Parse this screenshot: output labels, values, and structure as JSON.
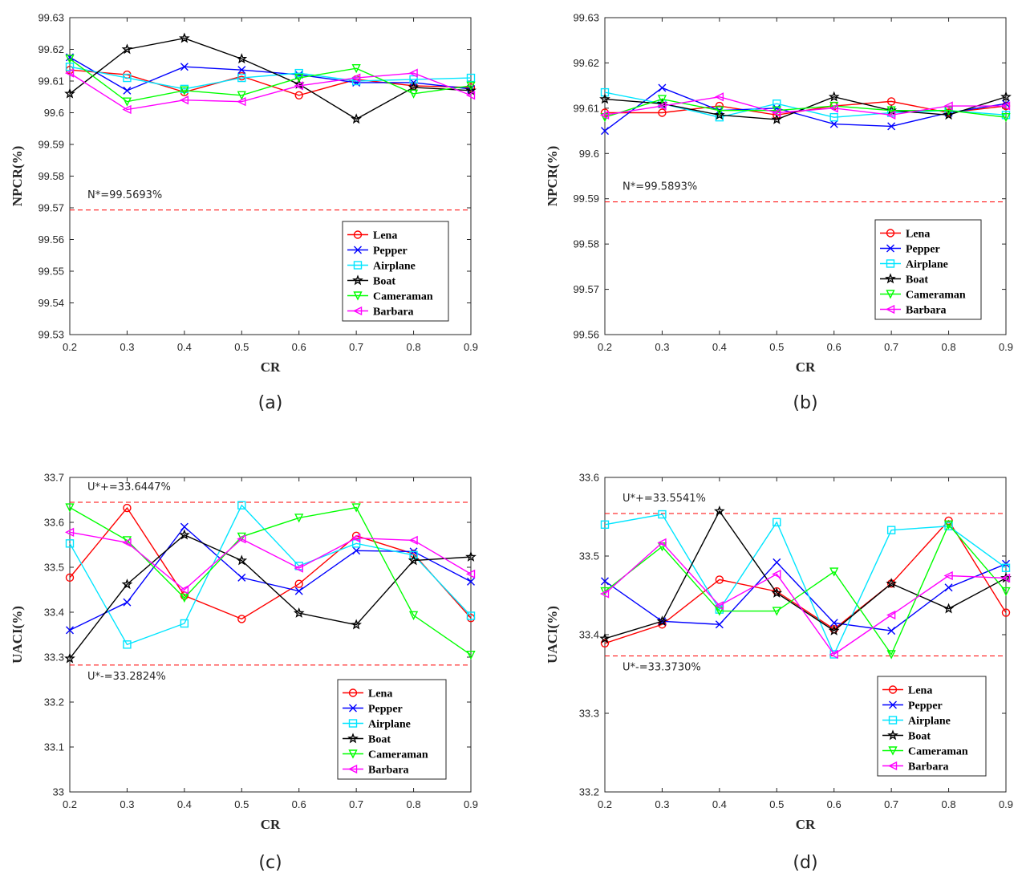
{
  "chart_data": [
    {
      "type": "line",
      "panel": "a",
      "caption": "(a)",
      "xlabel": "CR",
      "ylabel": "NPCR(%)",
      "x": [
        0.2,
        0.3,
        0.4,
        0.5,
        0.6,
        0.7,
        0.8,
        0.9
      ],
      "x_tick_labels": [
        "0.2",
        "0.3",
        "0.4",
        "0.5",
        "0.6",
        "0.7",
        "0.8",
        "0.9"
      ],
      "xlim": [
        0.2,
        0.9
      ],
      "ylim": [
        99.53,
        99.63
      ],
      "y_ticks": [
        99.53,
        99.54,
        99.55,
        99.56,
        99.57,
        99.58,
        99.59,
        99.6,
        99.61,
        99.62,
        99.63
      ],
      "y_tick_labels": [
        "99.53",
        "99.54",
        "99.55",
        "99.56",
        "99.57",
        "99.58",
        "99.59",
        "99.6",
        "99.61",
        "99.62",
        "99.63"
      ],
      "grid": false,
      "legend_position": "bottom-right",
      "thresholds": [
        {
          "value": 99.5693,
          "label": "N*=99.5693%",
          "label_side": "above"
        }
      ],
      "series": [
        {
          "name": "Lena",
          "color": "#ff0000",
          "marker": "circle",
          "values": [
            99.6135,
            99.612,
            99.6065,
            99.6115,
            99.6055,
            99.6105,
            99.6085,
            99.608
          ]
        },
        {
          "name": "Pepper",
          "color": "#0000ff",
          "marker": "x",
          "values": [
            99.6175,
            99.607,
            99.6145,
            99.6135,
            99.612,
            99.6095,
            99.6095,
            99.6075
          ]
        },
        {
          "name": "Airplane",
          "color": "#00e5ff",
          "marker": "square",
          "values": [
            99.6145,
            99.611,
            99.6075,
            99.611,
            99.6125,
            99.61,
            99.6105,
            99.611
          ]
        },
        {
          "name": "Boat",
          "color": "#000000",
          "marker": "star",
          "values": [
            99.606,
            99.62,
            99.6235,
            99.617,
            99.609,
            99.598,
            99.608,
            99.607
          ]
        },
        {
          "name": "Cameraman",
          "color": "#00ff00",
          "marker": "triangle-down",
          "values": [
            99.617,
            99.6035,
            99.607,
            99.6055,
            99.611,
            99.614,
            99.606,
            99.6085
          ]
        },
        {
          "name": "Barbara",
          "color": "#ff00ff",
          "marker": "triangle-left",
          "values": [
            99.6125,
            99.601,
            99.604,
            99.6035,
            99.6085,
            99.611,
            99.6125,
            99.6055
          ]
        }
      ]
    },
    {
      "type": "line",
      "panel": "b",
      "caption": "(b)",
      "xlabel": "CR",
      "ylabel": "NPCR(%)",
      "x": [
        0.2,
        0.3,
        0.4,
        0.5,
        0.6,
        0.7,
        0.8,
        0.9
      ],
      "x_tick_labels": [
        "0.2",
        "0.3",
        "0.4",
        "0.5",
        "0.6",
        "0.7",
        "0.8",
        "0.9"
      ],
      "xlim": [
        0.2,
        0.9
      ],
      "ylim": [
        99.56,
        99.63
      ],
      "y_ticks": [
        99.56,
        99.57,
        99.58,
        99.59,
        99.6,
        99.61,
        99.62,
        99.63
      ],
      "y_tick_labels": [
        "99.56",
        "99.57",
        "99.58",
        "99.59",
        "99.6",
        "99.61",
        "99.62",
        "99.63"
      ],
      "grid": false,
      "legend_position": "bottom-right",
      "thresholds": [
        {
          "value": 99.5893,
          "label": "N*=99.5893%",
          "label_side": "above"
        }
      ],
      "series": [
        {
          "name": "Lena",
          "color": "#ff0000",
          "marker": "circle",
          "values": [
            99.609,
            99.609,
            99.6105,
            99.6085,
            99.6105,
            99.6115,
            99.609,
            99.6105
          ]
        },
        {
          "name": "Pepper",
          "color": "#0000ff",
          "marker": "x",
          "values": [
            99.605,
            99.6145,
            99.6095,
            99.61,
            99.6065,
            99.606,
            99.609,
            99.611
          ]
        },
        {
          "name": "Airplane",
          "color": "#00e5ff",
          "marker": "square",
          "values": [
            99.6135,
            99.611,
            99.608,
            99.611,
            99.608,
            99.609,
            99.6095,
            99.6085
          ]
        },
        {
          "name": "Boat",
          "color": "#000000",
          "marker": "star",
          "values": [
            99.612,
            99.611,
            99.6085,
            99.6075,
            99.6125,
            99.6095,
            99.6085,
            99.6125
          ]
        },
        {
          "name": "Cameraman",
          "color": "#00ff00",
          "marker": "triangle-down",
          "values": [
            99.608,
            99.612,
            99.6095,
            99.6095,
            99.6105,
            99.6095,
            99.6095,
            99.608
          ]
        },
        {
          "name": "Barbara",
          "color": "#ff00ff",
          "marker": "triangle-left",
          "values": [
            99.6085,
            99.6105,
            99.6125,
            99.609,
            99.61,
            99.6085,
            99.6105,
            99.6105
          ]
        }
      ]
    },
    {
      "type": "line",
      "panel": "c",
      "caption": "(c)",
      "xlabel": "CR",
      "ylabel": "UACI(%)",
      "x": [
        0.2,
        0.3,
        0.4,
        0.5,
        0.6,
        0.7,
        0.8,
        0.9
      ],
      "x_tick_labels": [
        "0.2",
        "0.3",
        "0.4",
        "0.5",
        "0.6",
        "0.7",
        "0.8",
        "0.9"
      ],
      "xlim": [
        0.2,
        0.9
      ],
      "ylim": [
        33,
        33.7
      ],
      "y_ticks": [
        33,
        33.1,
        33.2,
        33.3,
        33.4,
        33.5,
        33.6,
        33.7
      ],
      "y_tick_labels": [
        "33",
        "33.1",
        "33.2",
        "33.3",
        "33.4",
        "33.5",
        "33.6",
        "33.7"
      ],
      "grid": false,
      "legend_position": "bottom-right",
      "thresholds": [
        {
          "value": 33.6447,
          "label": "U*+=33.6447%",
          "label_side": "above"
        },
        {
          "value": 33.2824,
          "label": "U*-=33.2824%",
          "label_side": "below"
        }
      ],
      "series": [
        {
          "name": "Lena",
          "color": "#ff0000",
          "marker": "circle",
          "values": [
            33.477,
            33.632,
            33.437,
            33.385,
            33.463,
            33.57,
            33.53,
            33.387
          ]
        },
        {
          "name": "Pepper",
          "color": "#0000ff",
          "marker": "x",
          "values": [
            33.36,
            33.422,
            33.59,
            33.477,
            33.447,
            33.537,
            33.535,
            33.468
          ]
        },
        {
          "name": "Airplane",
          "color": "#00e5ff",
          "marker": "square",
          "values": [
            33.553,
            33.328,
            33.375,
            33.638,
            33.503,
            33.553,
            33.527,
            33.392
          ]
        },
        {
          "name": "Boat",
          "color": "#000000",
          "marker": "star",
          "values": [
            33.297,
            33.462,
            33.572,
            33.515,
            33.398,
            33.372,
            33.515,
            33.523
          ]
        },
        {
          "name": "Cameraman",
          "color": "#00ff00",
          "marker": "triangle-down",
          "values": [
            33.633,
            33.56,
            33.432,
            33.568,
            33.61,
            33.633,
            33.393,
            33.305
          ]
        },
        {
          "name": "Barbara",
          "color": "#ff00ff",
          "marker": "triangle-left",
          "values": [
            33.578,
            33.555,
            33.45,
            33.563,
            33.498,
            33.565,
            33.56,
            33.485
          ]
        }
      ]
    },
    {
      "type": "line",
      "panel": "d",
      "caption": "(d)",
      "xlabel": "CR",
      "ylabel": "UACI(%)",
      "x": [
        0.2,
        0.3,
        0.4,
        0.5,
        0.6,
        0.7,
        0.8,
        0.9
      ],
      "x_tick_labels": [
        "0.2",
        "0.3",
        "0.4",
        "0.5",
        "0.6",
        "0.7",
        "0.8",
        "0.9"
      ],
      "xlim": [
        0.2,
        0.9
      ],
      "ylim": [
        33.2,
        33.6
      ],
      "y_ticks": [
        33.2,
        33.3,
        33.4,
        33.5,
        33.6
      ],
      "y_tick_labels": [
        "33.2",
        "33.3",
        "33.4",
        "33.5",
        "33.6"
      ],
      "grid": false,
      "legend_position": "bottom-right",
      "thresholds": [
        {
          "value": 33.5541,
          "label": "U*+=33.5541%",
          "label_side": "above"
        },
        {
          "value": 33.373,
          "label": "U*-=33.3730%",
          "label_side": "below"
        }
      ],
      "series": [
        {
          "name": "Lena",
          "color": "#ff0000",
          "marker": "circle",
          "values": [
            33.389,
            33.413,
            33.47,
            33.455,
            33.407,
            33.465,
            33.545,
            33.428
          ]
        },
        {
          "name": "Pepper",
          "color": "#0000ff",
          "marker": "x",
          "values": [
            33.468,
            33.417,
            33.413,
            33.492,
            33.415,
            33.405,
            33.46,
            33.49
          ]
        },
        {
          "name": "Airplane",
          "color": "#00e5ff",
          "marker": "square",
          "values": [
            33.54,
            33.553,
            33.432,
            33.543,
            33.375,
            33.533,
            33.538,
            33.485
          ]
        },
        {
          "name": "Boat",
          "color": "#000000",
          "marker": "star",
          "values": [
            33.395,
            33.417,
            33.557,
            33.453,
            33.405,
            33.465,
            33.433,
            33.472
          ]
        },
        {
          "name": "Cameraman",
          "color": "#00ff00",
          "marker": "triangle-down",
          "values": [
            33.455,
            33.512,
            33.43,
            33.43,
            33.48,
            33.375,
            33.54,
            33.455
          ]
        },
        {
          "name": "Barbara",
          "color": "#ff00ff",
          "marker": "triangle-left",
          "values": [
            33.452,
            33.517,
            33.437,
            33.477,
            33.375,
            33.425,
            33.475,
            33.472
          ]
        }
      ]
    }
  ]
}
